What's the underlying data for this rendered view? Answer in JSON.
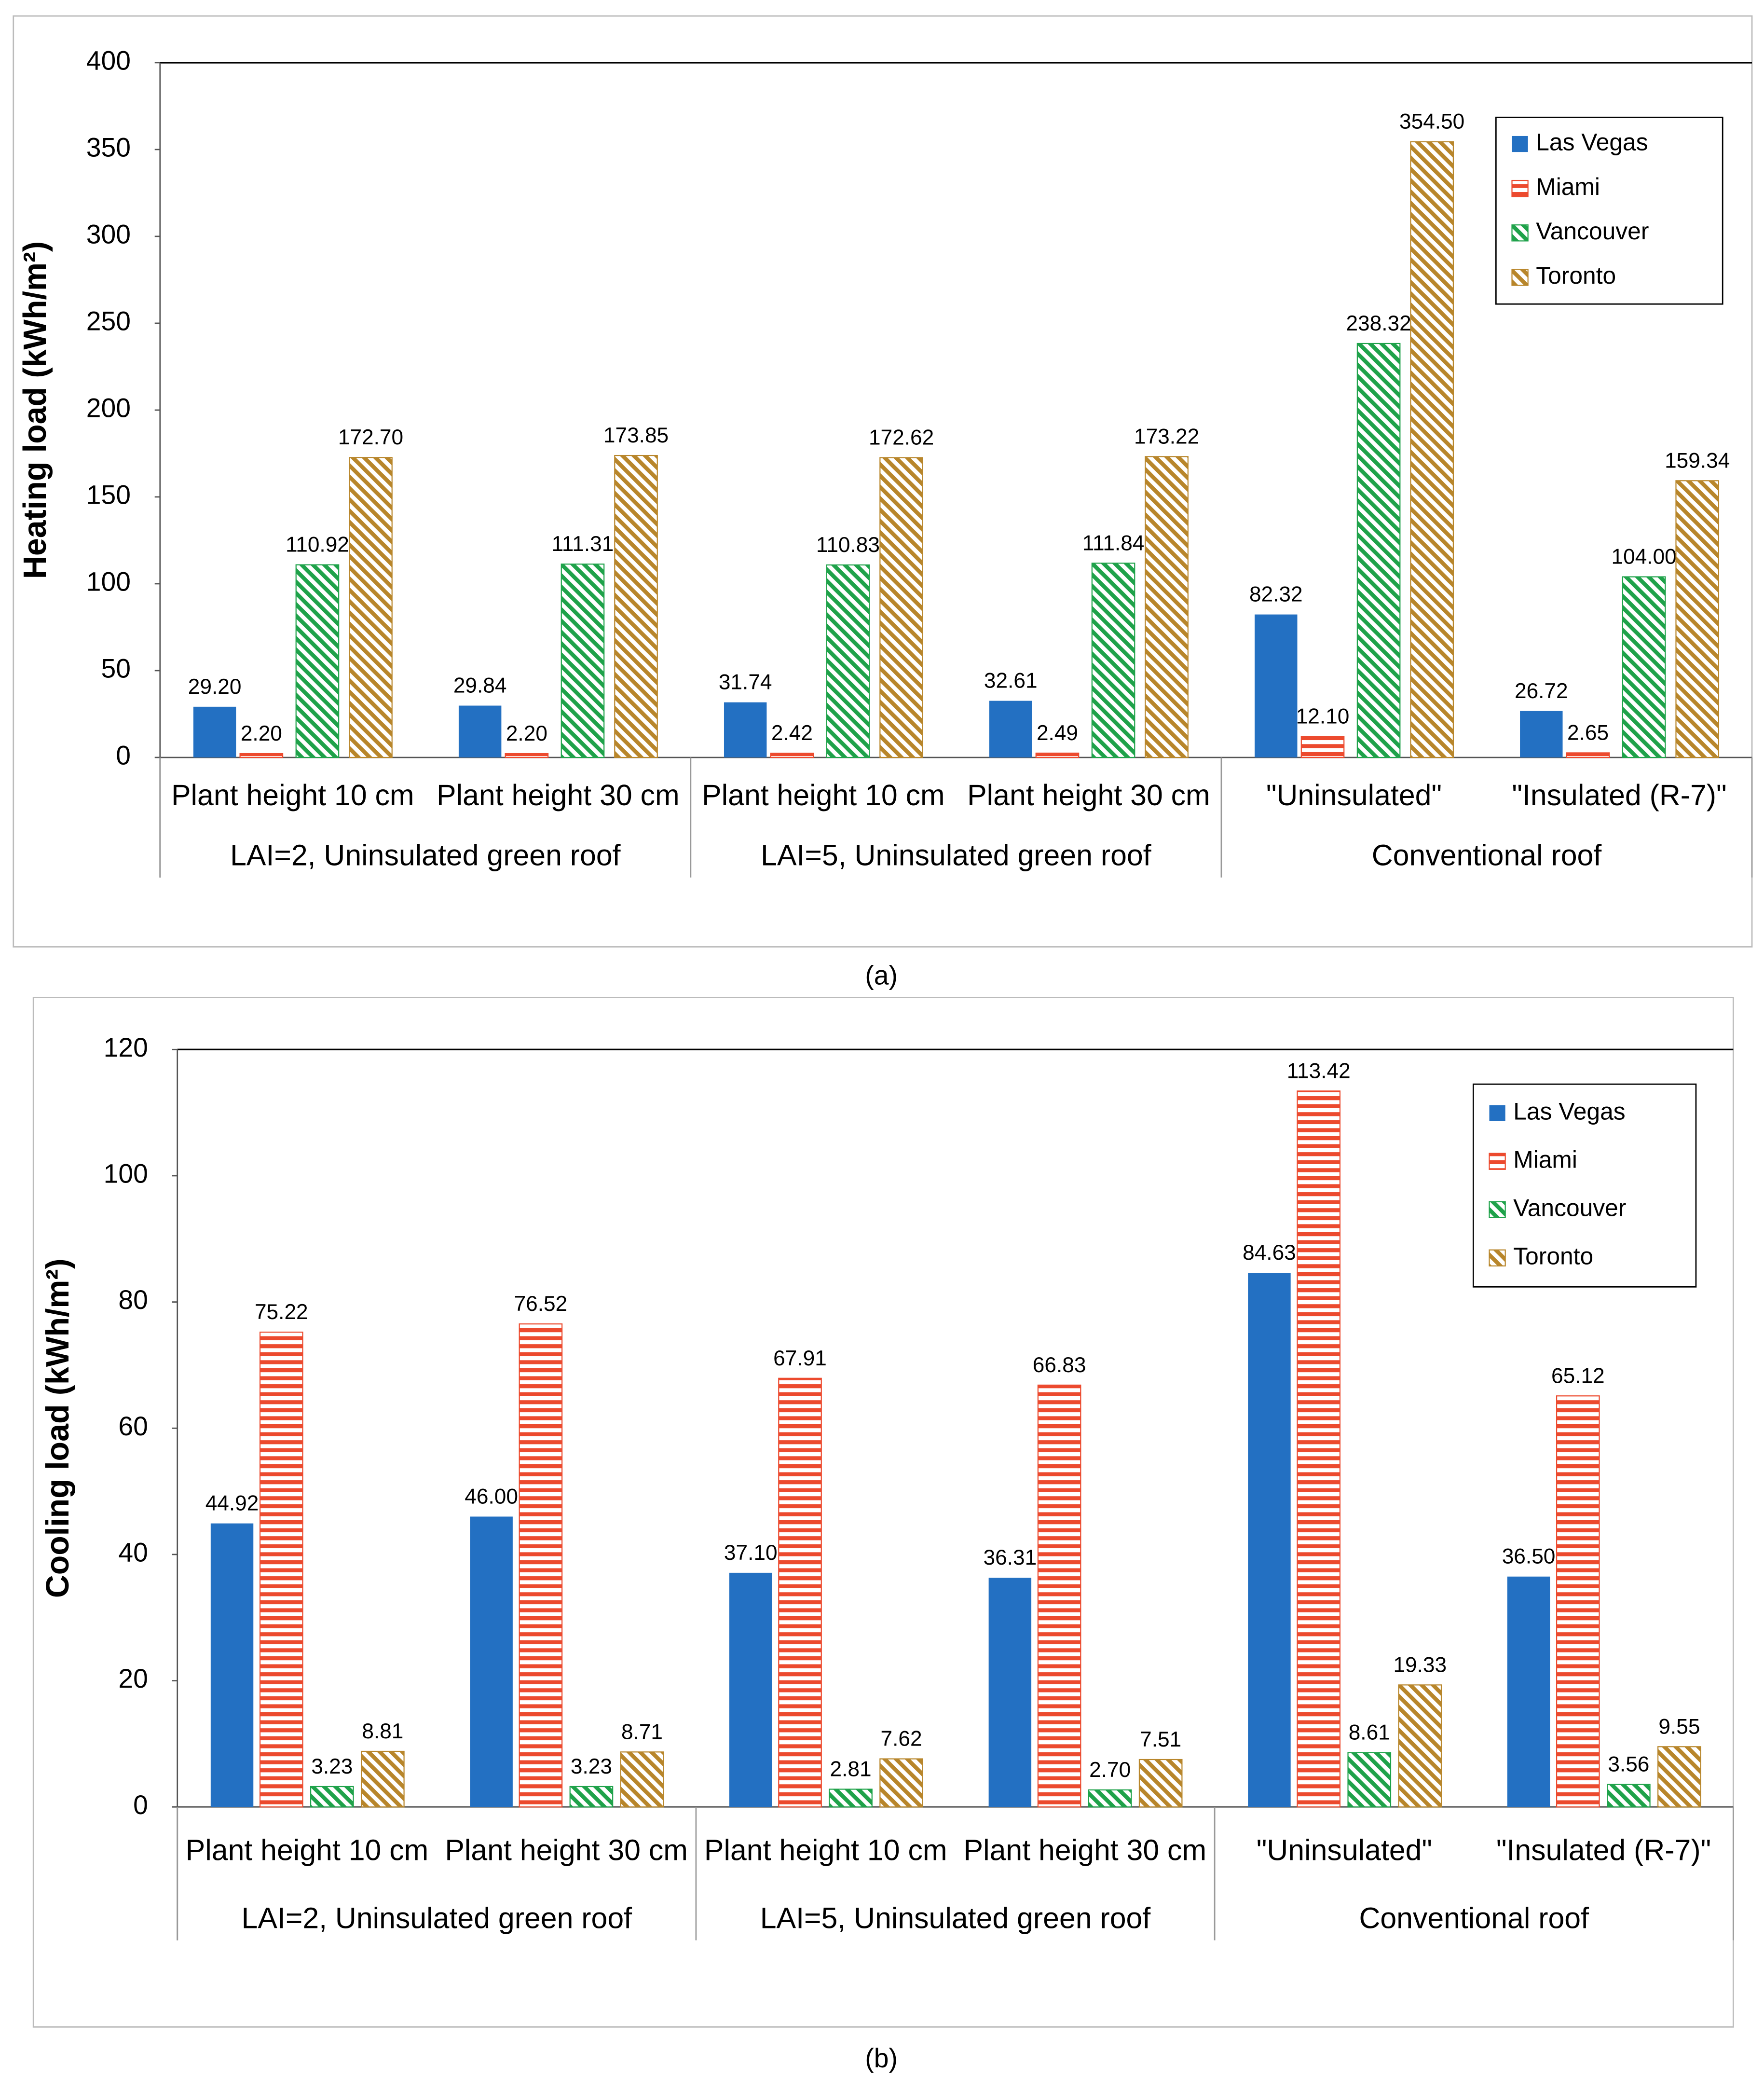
{
  "chart_data": [
    {
      "type": "bar",
      "caption": "(a)",
      "y_label": "Heating load (kWh/m²)",
      "ylim": [
        0,
        400
      ],
      "yticks": [
        0,
        50,
        100,
        150,
        200,
        250,
        300,
        350,
        400
      ],
      "category_groups": [
        {
          "name": "LAI=2, Uninsulated green roof",
          "categories": [
            "Plant height 10 cm",
            "Plant height 30 cm"
          ]
        },
        {
          "name": "LAI=5, Uninsulated green roof",
          "categories": [
            "Plant height 10 cm",
            "Plant height 30 cm"
          ]
        },
        {
          "name": "Conventional roof",
          "categories": [
            "\"Uninsulated\"",
            "\"Insulated (R-7)\""
          ]
        }
      ],
      "series": [
        {
          "name": "Las Vegas",
          "color": "#2370c2",
          "pattern": "solid",
          "values": [
            29.2,
            29.84,
            31.74,
            32.61,
            82.32,
            26.72
          ],
          "value_labels": [
            "29.20",
            "29.84",
            "31.74",
            "32.61",
            "82.32",
            "26.72"
          ]
        },
        {
          "name": "Miami",
          "color": "#ec4a2e",
          "pattern": "horizontal",
          "values": [
            2.2,
            2.2,
            2.42,
            2.49,
            12.1,
            2.65
          ],
          "value_labels": [
            "2.20",
            "2.20",
            "2.42",
            "2.49",
            "12.10",
            "2.65"
          ]
        },
        {
          "name": "Vancouver",
          "color": "#1fa24a",
          "pattern": "diagonal",
          "values": [
            110.92,
            111.31,
            110.83,
            111.84,
            238.32,
            104.0
          ],
          "value_labels": [
            "110.92",
            "111.31",
            "110.83",
            "111.84",
            "238.32",
            "104.00"
          ]
        },
        {
          "name": "Toronto",
          "color": "#b8862b",
          "pattern": "diagonal",
          "values": [
            172.7,
            173.85,
            172.62,
            173.22,
            354.5,
            159.34
          ],
          "value_labels": [
            "172.70",
            "173.85",
            "172.62",
            "173.22",
            "354.50",
            "159.34"
          ]
        }
      ],
      "legend": "top-right"
    },
    {
      "type": "bar",
      "caption": "(b)",
      "y_label": "Cooling load (kWh/m²)",
      "ylim": [
        0,
        120
      ],
      "yticks": [
        0,
        20,
        40,
        60,
        80,
        100,
        120
      ],
      "category_groups": [
        {
          "name": "LAI=2, Uninsulated green roof",
          "categories": [
            "Plant height 10 cm",
            "Plant height 30 cm"
          ]
        },
        {
          "name": "LAI=5, Uninsulated green roof",
          "categories": [
            "Plant height 10 cm",
            "Plant height 30 cm"
          ]
        },
        {
          "name": "Conventional roof",
          "categories": [
            "\"Uninsulated\"",
            "\"Insulated (R-7)\""
          ]
        }
      ],
      "series": [
        {
          "name": "Las Vegas",
          "color": "#2370c2",
          "pattern": "solid",
          "values": [
            44.92,
            46.0,
            37.1,
            36.31,
            84.63,
            36.5
          ],
          "value_labels": [
            "44.92",
            "46.00",
            "37.10",
            "36.31",
            "84.63",
            "36.50"
          ]
        },
        {
          "name": "Miami",
          "color": "#ec4a2e",
          "pattern": "horizontal",
          "values": [
            75.22,
            76.52,
            67.91,
            66.83,
            113.42,
            65.12
          ],
          "value_labels": [
            "75.22",
            "76.52",
            "67.91",
            "66.83",
            "113.42",
            "65.12"
          ]
        },
        {
          "name": "Vancouver",
          "color": "#1fa24a",
          "pattern": "diagonal",
          "values": [
            3.23,
            3.23,
            2.81,
            2.7,
            8.61,
            3.56
          ],
          "value_labels": [
            "3.23",
            "3.23",
            "2.81",
            "2.70",
            "8.61",
            "3.56"
          ]
        },
        {
          "name": "Toronto",
          "color": "#b8862b",
          "pattern": "diagonal",
          "values": [
            8.81,
            8.71,
            7.62,
            7.51,
            19.33,
            9.55
          ],
          "value_labels": [
            "8.81",
            "8.71",
            "7.62",
            "7.51",
            "19.33",
            "9.55"
          ]
        }
      ],
      "legend": "top-right"
    }
  ]
}
